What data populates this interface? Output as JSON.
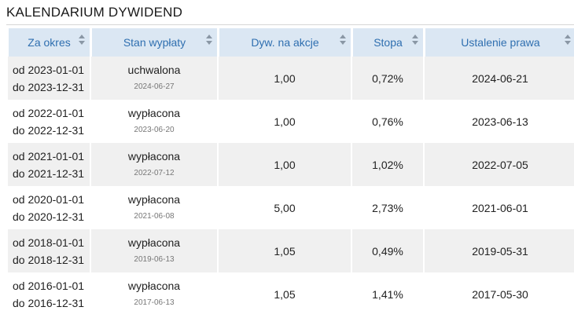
{
  "title": "KALENDARIUM DYWIDEND",
  "columns": [
    "Za okres",
    "Stan wypłaty",
    "Dyw. na akcje",
    "Stopa",
    "Ustalenie prawa"
  ],
  "rows": [
    {
      "from": "od 2023-01-01",
      "to": "do 2023-12-31",
      "status": "uchwalona",
      "status_date": "2024-06-27",
      "dividend": "1,00",
      "rate": "0,72%",
      "record_date": "2024-06-21"
    },
    {
      "from": "od 2022-01-01",
      "to": "do 2022-12-31",
      "status": "wypłacona",
      "status_date": "2023-06-20",
      "dividend": "1,00",
      "rate": "0,76%",
      "record_date": "2023-06-13"
    },
    {
      "from": "od 2021-01-01",
      "to": "do 2021-12-31",
      "status": "wypłacona",
      "status_date": "2022-07-12",
      "dividend": "1,00",
      "rate": "1,02%",
      "record_date": "2022-07-05"
    },
    {
      "from": "od 2020-01-01",
      "to": "do 2020-12-31",
      "status": "wypłacona",
      "status_date": "2021-06-08",
      "dividend": "5,00",
      "rate": "2,73%",
      "record_date": "2021-06-01"
    },
    {
      "from": "od 2018-01-01",
      "to": "do 2018-12-31",
      "status": "wypłacona",
      "status_date": "2019-06-13",
      "dividend": "1,05",
      "rate": "0,49%",
      "record_date": "2019-05-31"
    },
    {
      "from": "od 2016-01-01",
      "to": "do 2016-12-31",
      "status": "wypłacona",
      "status_date": "2017-06-13",
      "dividend": "1,05",
      "rate": "1,41%",
      "record_date": "2017-05-30"
    }
  ]
}
